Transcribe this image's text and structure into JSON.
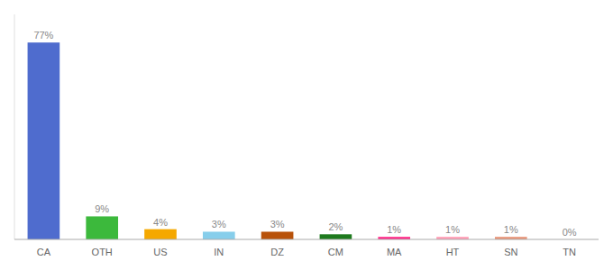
{
  "chart_data": {
    "type": "bar",
    "categories": [
      "CA",
      "OTH",
      "US",
      "IN",
      "DZ",
      "CM",
      "MA",
      "HT",
      "SN",
      "TN"
    ],
    "values": [
      77,
      9,
      4,
      3,
      3,
      2,
      1,
      1,
      1,
      0
    ],
    "value_labels": [
      "77%",
      "9%",
      "4%",
      "3%",
      "3%",
      "2%",
      "1%",
      "1%",
      "1%",
      "0%"
    ],
    "colors": [
      "#4f6cce",
      "#3cb93c",
      "#f5a800",
      "#87ceeb",
      "#b8520a",
      "#1e7a1e",
      "#ff2d8a",
      "#ff9eb5",
      "#e8967a",
      "#ffcccc"
    ],
    "ylim": [
      0,
      88
    ],
    "data_labels": true,
    "tick_labels": "x",
    "grid": false
  }
}
